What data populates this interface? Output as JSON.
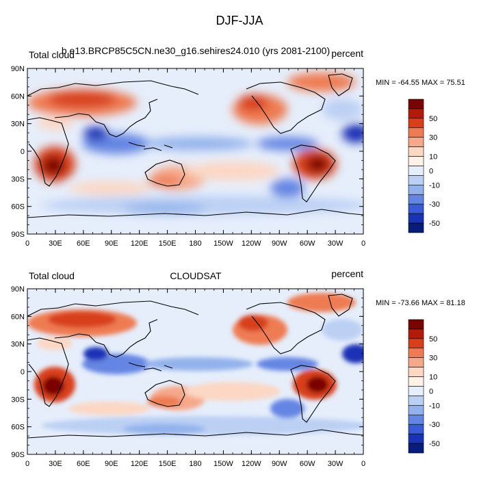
{
  "title": "DJF-JJA",
  "panels": [
    {
      "left_label": "Total cloud",
      "center_label": "b.e13.BRCP85C5CN.ne30_g16.sehires24.010 (yrs 2081-2100)",
      "right_label": "percent",
      "minmax": "MIN = -64.55 MAX =  75.51"
    },
    {
      "left_label": "Total cloud",
      "center_label": "CLOUDSAT",
      "right_label": "percent",
      "minmax": "MIN = -73.66 MAX =  81.18"
    }
  ],
  "axes": {
    "lon_ticks": [
      "0",
      "30E",
      "60E",
      "90E",
      "120E",
      "150E",
      "180",
      "150W",
      "120W",
      "90W",
      "60W",
      "30W",
      "0"
    ],
    "lat_ticks": [
      "90N",
      "60N",
      "30N",
      "0",
      "30S",
      "60S",
      "90S"
    ],
    "lat_values": [
      90,
      60,
      30,
      0,
      -30,
      -60,
      -90
    ],
    "lon_range": [
      0,
      360
    ],
    "lat_range": [
      -90,
      90
    ]
  },
  "colorbar": {
    "labels": [
      "50",
      "30",
      "10",
      "0",
      "-10",
      "-30",
      "-50"
    ],
    "colors": [
      "#7a0403",
      "#b21b0c",
      "#d8401c",
      "#ee7b53",
      "#f6a88a",
      "#fcd7c4",
      "#fdf1e8",
      "#e6eefb",
      "#bcd0f4",
      "#93b2ec",
      "#6585e3",
      "#3a5ad6",
      "#1a33b5",
      "#081d7a"
    ]
  }
}
